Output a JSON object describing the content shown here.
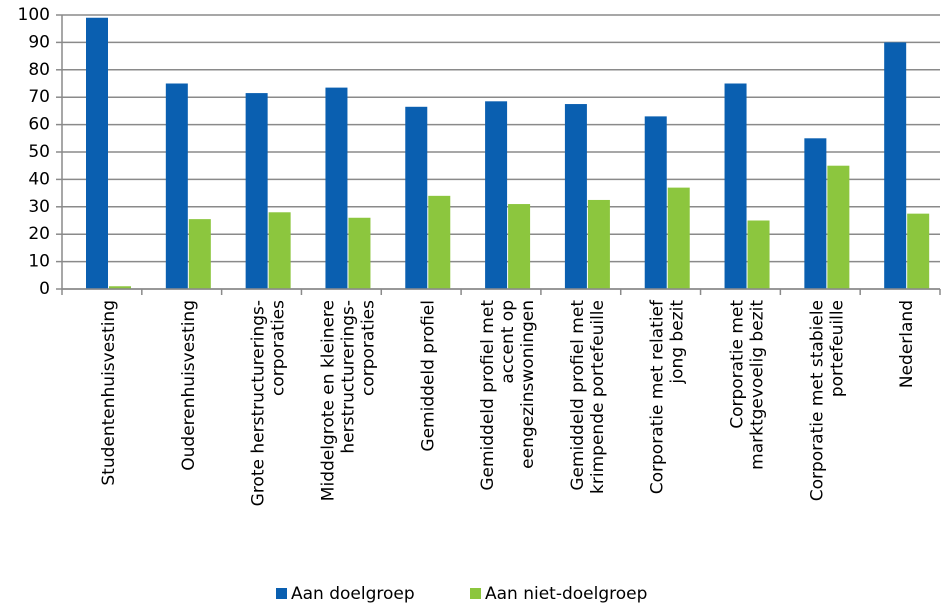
{
  "chart_data": {
    "type": "bar",
    "categories": [
      "Studentenhuisvesting",
      "Ouderenhuisvesting",
      "Grote herstructurerings-\ncorporaties",
      "Middelgrote en kleinere\nherstructurerings-\ncorporaties",
      "Gemiddeld profiel",
      "Gemiddeld profiel met\naccent op\neengezinswoningen",
      "Gemiddeld profiel met\nkrimpende portefeuille",
      "Corporatie met relatief\njong bezit",
      "Corporatie met\nmarktgevoelig bezit",
      "Corporatie met stabiele\nportefeuille",
      "Nederland"
    ],
    "series": [
      {
        "name": "Aan doelgroep",
        "color": "#0a5fb0",
        "values": [
          99,
          75,
          71.5,
          73.5,
          66.5,
          68.5,
          67.5,
          63,
          75,
          55,
          90
        ]
      },
      {
        "name": "Aan niet-doelgroep",
        "color": "#8cc63e",
        "values": [
          1,
          25.5,
          28,
          26,
          34,
          31,
          32.5,
          37,
          25,
          45,
          27.5
        ]
      }
    ],
    "ylim": [
      0,
      100
    ],
    "yticks": [
      0,
      10,
      20,
      30,
      40,
      50,
      60,
      70,
      80,
      90,
      100
    ],
    "grid": true,
    "legend": "bottom"
  }
}
